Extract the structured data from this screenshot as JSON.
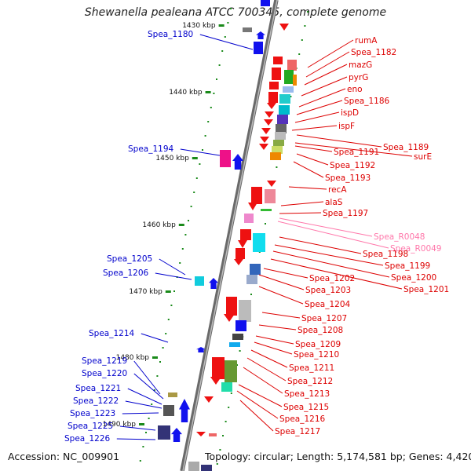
{
  "title": "Shewanella pealeana ATCC 700345, complete genome",
  "accession": "Accession: NC_009901",
  "topology": "Topology: circular; Length: 5,174,581 bp; Genes: 4,420",
  "colors": {
    "backbone": "#808080",
    "tick": "#1a8a1a",
    "left_label": "#0000cc",
    "right_label": "#dd0000",
    "rna_label": "#ff77aa"
  },
  "kbp_ticks": [
    "1430 kbp",
    "1440 kbp",
    "1450 kbp",
    "1460 kbp",
    "1470 kbp",
    "1480 kbp",
    "1490 kbp"
  ],
  "left_labels": [
    "Spea_1180",
    "Spea_1194",
    "Spea_1205",
    "Spea_1206",
    "Spea_1214",
    "Spea_1219",
    "Spea_1220",
    "Spea_1221",
    "Spea_1222",
    "Spea_1223",
    "Spea_1225",
    "Spea_1226"
  ],
  "right_labels": [
    "rumA",
    "Spea_1182",
    "mazG",
    "pyrG",
    "eno",
    "Spea_1186",
    "ispD",
    "ispF",
    "Spea_1189",
    "surE",
    "Spea_1191",
    "Spea_1192",
    "Spea_1193",
    "recA",
    "alaS",
    "Spea_1197",
    "Spea_R0048",
    "Spea_R0049",
    "Spea_1198",
    "Spea_1199",
    "Spea_1200",
    "Spea_1201",
    "Spea_1202",
    "Spea_1203",
    "Spea_1204",
    "Spea_1207",
    "Spea_1208",
    "Spea_1209",
    "Spea_1210",
    "Spea_1211",
    "Spea_1212",
    "Spea_1213",
    "Spea_1215",
    "Spea_1216",
    "Spea_1217"
  ]
}
